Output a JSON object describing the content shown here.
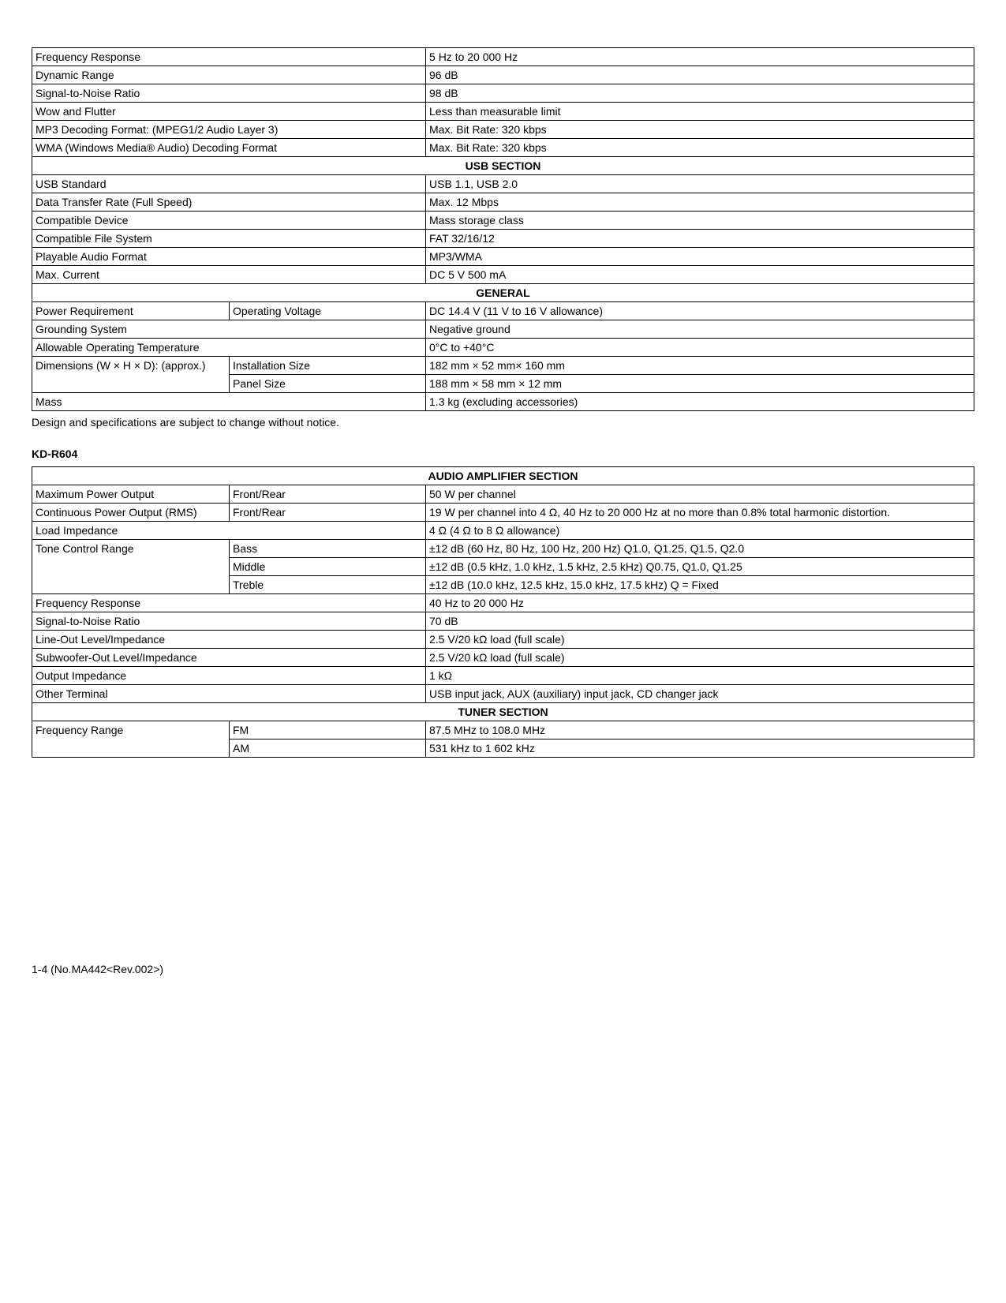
{
  "table1": {
    "rows_top": [
      {
        "label": "Frequency Response",
        "value": "5 Hz to 20 000 Hz"
      },
      {
        "label": "Dynamic Range",
        "value": "96 dB"
      },
      {
        "label": "Signal-to-Noise Ratio",
        "value": "98 dB"
      },
      {
        "label": "Wow and Flutter",
        "value": "Less than measurable limit"
      },
      {
        "label": "MP3 Decoding Format: (MPEG1/2 Audio Layer 3)",
        "value": "Max. Bit Rate: 320 kbps"
      },
      {
        "label": "WMA (Windows Media® Audio) Decoding Format",
        "value": "Max. Bit Rate: 320 kbps"
      }
    ],
    "usb_header": "USB SECTION",
    "usb_rows": [
      {
        "label": "USB Standard",
        "value": "USB 1.1, USB 2.0"
      },
      {
        "label": "Data Transfer Rate (Full Speed)",
        "value": "Max. 12 Mbps"
      },
      {
        "label": "Compatible Device",
        "value": "Mass storage class"
      },
      {
        "label": "Compatible File System",
        "value": "FAT 32/16/12"
      },
      {
        "label": "Playable Audio Format",
        "value": "MP3/WMA"
      },
      {
        "label": "Max. Current",
        "value": "DC 5 V 500 mA"
      }
    ],
    "general_header": "GENERAL",
    "power_req": {
      "label": "Power Requirement",
      "sub": "Operating Voltage",
      "value": "DC 14.4 V (11 V to 16 V allowance)"
    },
    "grounding": {
      "label": "Grounding System",
      "value": "Negative ground"
    },
    "temp": {
      "label": "Allowable Operating Temperature",
      "value": "0°C to +40°C"
    },
    "dimensions": {
      "label": "Dimensions (W × H × D): (approx.)",
      "install": {
        "sub": "Installation Size",
        "value": "182 mm × 52 mm× 160 mm"
      },
      "panel": {
        "sub": "Panel Size",
        "value": "188 mm × 58 mm × 12 mm"
      }
    },
    "mass": {
      "label": "Mass",
      "value": "1.3 kg (excluding accessories)"
    }
  },
  "note_text": "Design and specifications are subject to change without notice.",
  "model_name": "KD-R604",
  "table2": {
    "audio_header": "AUDIO AMPLIFIER SECTION",
    "max_power": {
      "label": "Maximum Power Output",
      "sub": "Front/Rear",
      "value": "50 W per channel"
    },
    "cont_power": {
      "label": "Continuous Power Output (RMS)",
      "sub": "Front/Rear",
      "value": "19 W per channel into 4 Ω, 40 Hz to 20 000 Hz at no more than 0.8% total harmonic distortion."
    },
    "load_imp": {
      "label": "Load Impedance",
      "value": "4 Ω (4 Ω to 8 Ω allowance)"
    },
    "tone": {
      "label": "Tone Control Range",
      "bass": {
        "sub": "Bass",
        "value": "±12 dB (60 Hz, 80 Hz, 100 Hz, 200 Hz) Q1.0, Q1.25, Q1.5, Q2.0"
      },
      "middle": {
        "sub": "Middle",
        "value": "±12 dB (0.5 kHz, 1.0 kHz, 1.5 kHz, 2.5 kHz) Q0.75, Q1.0, Q1.25"
      },
      "treble": {
        "sub": "Treble",
        "value": "±12 dB (10.0 kHz, 12.5 kHz, 15.0 kHz, 17.5 kHz) Q = Fixed"
      }
    },
    "freq_resp": {
      "label": "Frequency Response",
      "value": "40 Hz to 20 000 Hz"
    },
    "snr": {
      "label": "Signal-to-Noise Ratio",
      "value": "70 dB"
    },
    "line_out": {
      "label": "Line-Out Level/Impedance",
      "value": "2.5 V/20 kΩ load (full scale)"
    },
    "sub_out": {
      "label": "Subwoofer-Out Level/Impedance",
      "value": "2.5 V/20 kΩ load (full scale)"
    },
    "out_imp": {
      "label": "Output Impedance",
      "value": "1 kΩ"
    },
    "other_term": {
      "label": "Other Terminal",
      "value": "USB input jack, AUX (auxiliary) input jack, CD changer jack"
    },
    "tuner_header": "TUNER SECTION",
    "freq_range": {
      "label": "Frequency Range",
      "fm": {
        "sub": "FM",
        "value": "87.5 MHz to 108.0 MHz"
      },
      "am": {
        "sub": "AM",
        "value": "531 kHz to 1 602 kHz"
      }
    }
  },
  "footer_text": "1-4 (No.MA442<Rev.002>)"
}
